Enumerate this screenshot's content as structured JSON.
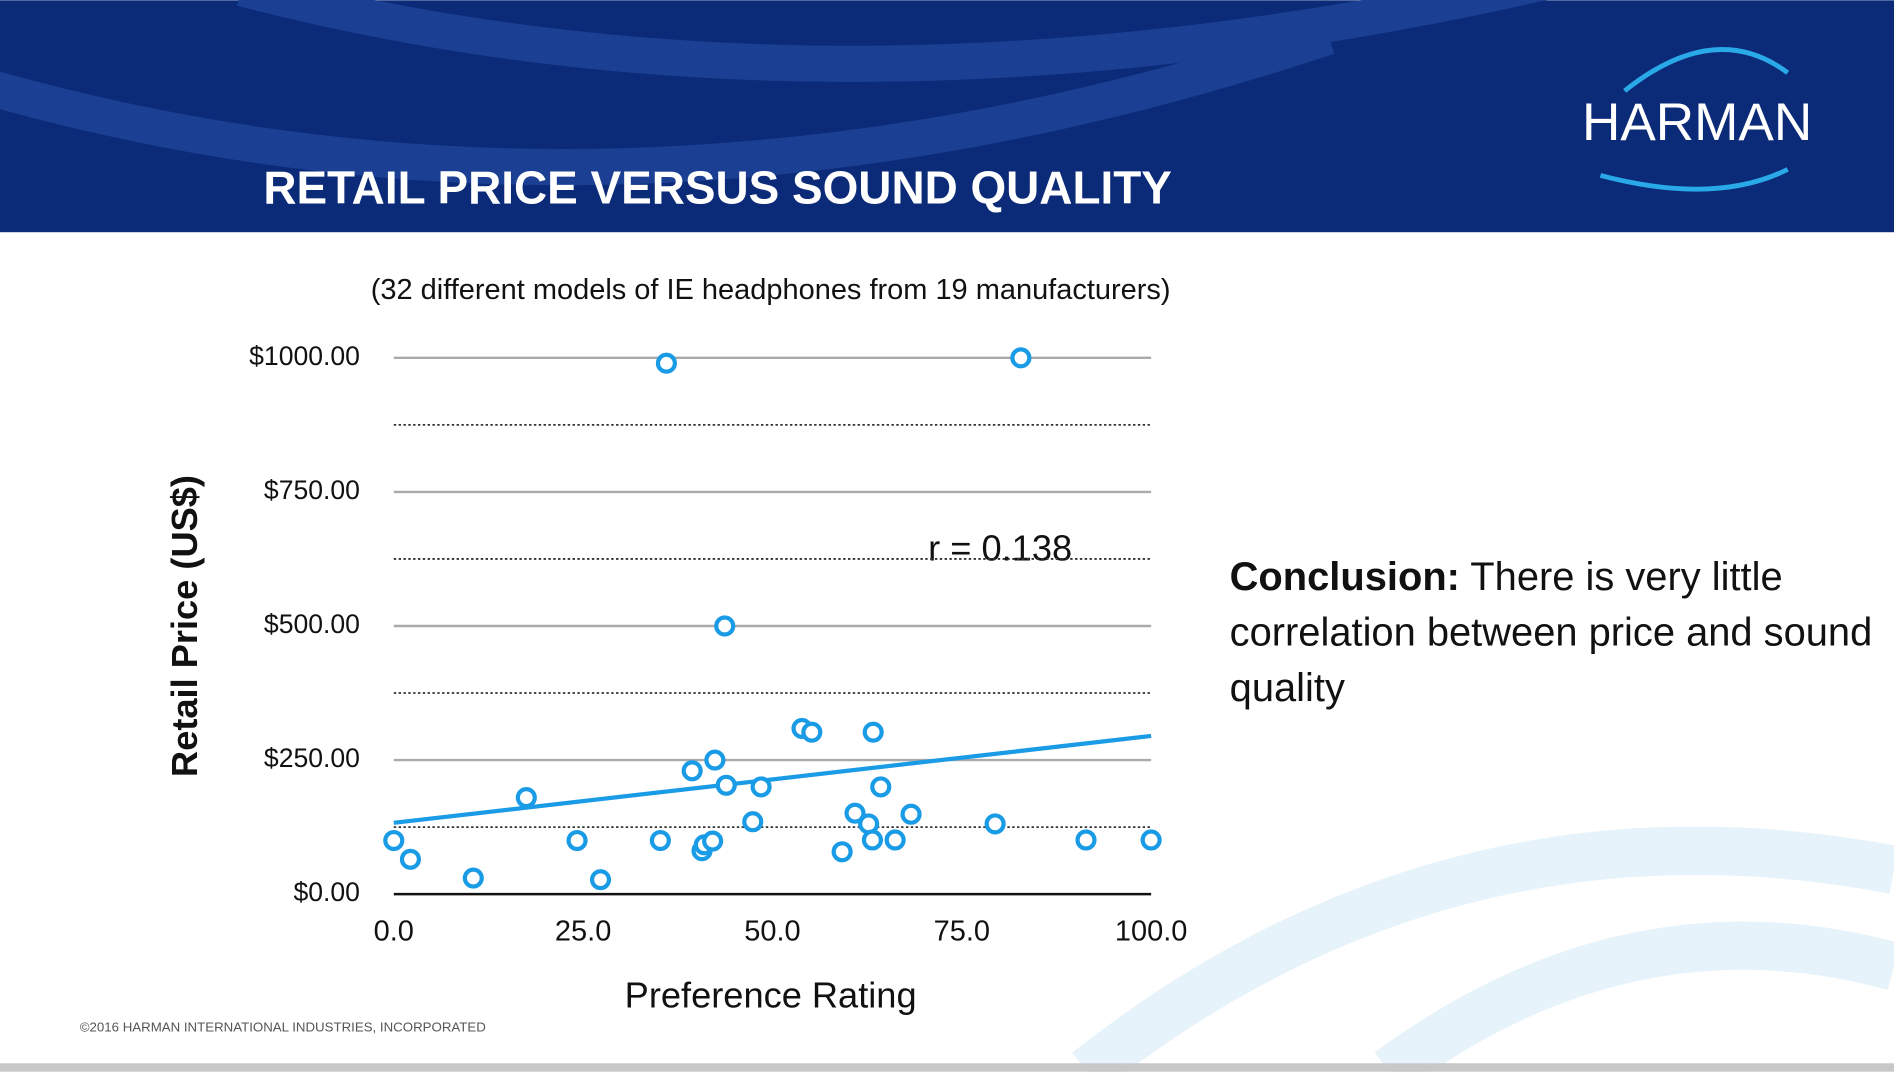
{
  "chart_data": {
    "type": "scatter",
    "title": "RETAIL PRICE VERSUS SOUND QUALITY",
    "subtitle": "(32 different models of IE headphones from 19 manufacturers)",
    "x_label": "Preference Rating",
    "y_label": "Retail Price (US$)",
    "annotation": "r = 0.138",
    "color": "#1a9be6",
    "grid": true,
    "x": [
      0,
      2.2,
      10.5,
      17.5,
      24.2,
      27.3,
      35.2,
      36,
      39.4,
      40.7,
      41,
      42.1,
      42.4,
      43.7,
      43.9,
      47.4,
      48.5,
      53.9,
      55.2,
      59.2,
      60.9,
      62.7,
      63.2,
      63.3,
      64.3,
      66.2,
      68.3,
      79.4,
      82.8,
      91.4,
      100
    ],
    "values": [
      100,
      65,
      30,
      180,
      100,
      27,
      100,
      990,
      230,
      81,
      92,
      99,
      250,
      500,
      203,
      135,
      200,
      309,
      302,
      79,
      151,
      131,
      101,
      302,
      200,
      101,
      149,
      131,
      1000,
      101,
      101
    ],
    "trendline": {
      "x": [
        0,
        100
      ],
      "values": [
        133,
        295
      ]
    },
    "xlim": [
      0,
      100
    ],
    "ylim": [
      0,
      1000
    ],
    "xticks": [
      {
        "value": 0,
        "label": "0.0"
      },
      {
        "value": 25,
        "label": "25.0"
      },
      {
        "value": 50,
        "label": "50.0"
      },
      {
        "value": 75,
        "label": "75.0"
      },
      {
        "value": 100,
        "label": "100.0"
      }
    ],
    "yticks": [
      {
        "value": 0,
        "label": "$0.00"
      },
      {
        "value": 250,
        "label": "$250.00"
      },
      {
        "value": 500,
        "label": "$500.00"
      },
      {
        "value": 750,
        "label": "$750.00"
      },
      {
        "value": 1000,
        "label": "$1000.00"
      }
    ],
    "minor_yticks": [
      125,
      375,
      625,
      875
    ]
  },
  "slide": {
    "logo": "HARMAN",
    "conclusion_label": "Conclusion:",
    "conclusion_text": "There is very little correlation between price and sound quality",
    "footer": "©2016 HARMAN INTERNATIONAL INDUSTRIES, INCORPORATED"
  }
}
